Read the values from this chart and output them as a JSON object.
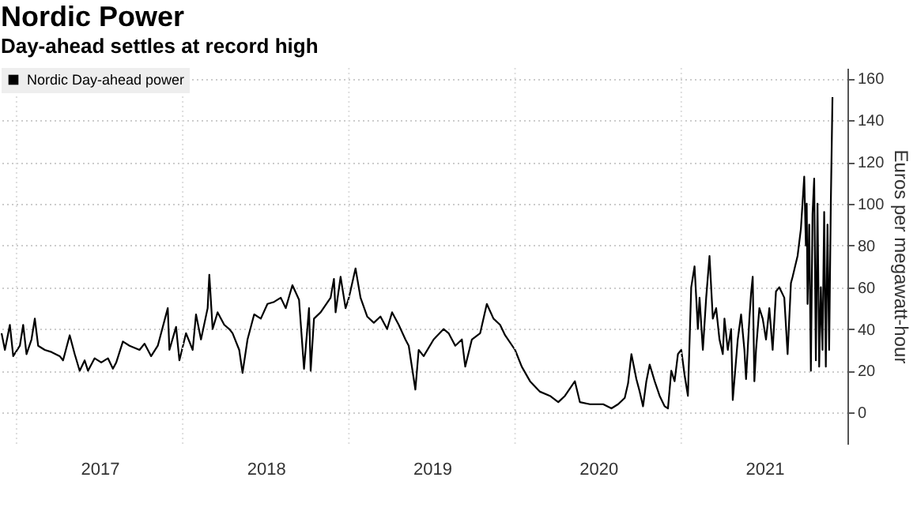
{
  "chart_data": {
    "type": "line",
    "title": "Nordic Power",
    "subtitle": "Day-ahead settles at record high",
    "ylabel": "Euros per megawatt-hour",
    "x": [
      2016.91,
      2016.93,
      2016.96,
      2016.98,
      2017.02,
      2017.04,
      2017.06,
      2017.09,
      2017.11,
      2017.13,
      2017.17,
      2017.21,
      2017.26,
      2017.28,
      2017.32,
      2017.35,
      2017.38,
      2017.41,
      2017.43,
      2017.47,
      2017.51,
      2017.55,
      2017.58,
      2017.6,
      2017.64,
      2017.68,
      2017.74,
      2017.77,
      2017.81,
      2017.85,
      2017.91,
      2017.92,
      2017.96,
      2017.98,
      2018.02,
      2018.06,
      2018.08,
      2018.11,
      2018.15,
      2018.16,
      2018.18,
      2018.21,
      2018.25,
      2018.28,
      2018.3,
      2018.34,
      2018.36,
      2018.39,
      2018.43,
      2018.47,
      2018.51,
      2018.55,
      2018.59,
      2018.62,
      2018.66,
      2018.7,
      2018.73,
      2018.76,
      2018.77,
      2018.79,
      2018.83,
      2018.89,
      2018.91,
      2018.92,
      2018.95,
      2018.98,
      2019.0,
      2019.04,
      2019.07,
      2019.11,
      2019.15,
      2019.19,
      2019.23,
      2019.26,
      2019.3,
      2019.34,
      2019.36,
      2019.4,
      2019.42,
      2019.45,
      2019.51,
      2019.57,
      2019.6,
      2019.64,
      2019.68,
      2019.7,
      2019.74,
      2019.79,
      2019.83,
      2019.87,
      2019.91,
      2019.94,
      2020.0,
      2020.04,
      2020.09,
      2020.15,
      2020.21,
      2020.26,
      2020.3,
      2020.36,
      2020.39,
      2020.45,
      2020.53,
      2020.58,
      2020.62,
      2020.66,
      2020.68,
      2020.7,
      2020.73,
      2020.75,
      2020.77,
      2020.79,
      2020.81,
      2020.84,
      2020.87,
      2020.9,
      2020.92,
      2020.94,
      2020.96,
      2020.98,
      2021.0,
      2021.02,
      2021.04,
      2021.06,
      2021.08,
      2021.1,
      2021.11,
      2021.13,
      2021.15,
      2021.17,
      2021.19,
      2021.21,
      2021.23,
      2021.25,
      2021.26,
      2021.28,
      2021.3,
      2021.31,
      2021.34,
      2021.36,
      2021.38,
      2021.39,
      2021.41,
      2021.42,
      2021.43,
      2021.44,
      2021.45,
      2021.47,
      2021.49,
      2021.51,
      2021.53,
      2021.55,
      2021.57,
      2021.59,
      2021.62,
      2021.64,
      2021.66,
      2021.67,
      2021.7,
      2021.72,
      2021.74,
      2021.75,
      2021.755,
      2021.76,
      2021.77,
      2021.78,
      2021.79,
      2021.8,
      2021.81,
      2021.82,
      2021.83,
      2021.84,
      2021.85,
      2021.86,
      2021.87,
      2021.88,
      2021.89,
      2021.9,
      2021.91
    ],
    "series": [
      {
        "name": "Nordic Day-ahead power",
        "color": "#000000",
        "values": [
          38,
          30,
          42,
          27,
          32,
          42,
          28,
          35,
          45,
          32,
          30,
          29,
          27,
          25,
          37,
          28,
          20,
          25,
          20,
          26,
          24,
          26,
          21,
          24,
          34,
          32,
          30,
          33,
          27,
          32,
          50,
          30,
          41,
          25,
          38,
          30,
          47,
          35,
          50,
          66,
          40,
          48,
          42,
          40,
          38,
          30,
          19,
          35,
          47,
          45,
          52,
          53,
          55,
          50,
          61,
          54,
          21,
          50,
          20,
          45,
          48,
          55,
          64,
          48,
          65,
          50,
          55,
          69,
          55,
          46,
          43,
          46,
          40,
          48,
          42,
          35,
          32,
          11,
          30,
          27,
          35,
          40,
          38,
          32,
          35,
          22,
          35,
          38,
          52,
          45,
          42,
          37,
          30,
          22,
          15,
          10,
          8,
          5,
          8,
          15,
          5,
          4,
          4,
          2,
          4,
          7,
          14,
          28,
          16,
          10,
          3,
          15,
          23,
          15,
          8,
          3,
          2,
          20,
          15,
          28,
          30,
          18,
          8,
          60,
          70,
          40,
          55,
          30,
          55,
          75,
          45,
          50,
          35,
          28,
          45,
          30,
          40,
          6,
          35,
          47,
          30,
          16,
          45,
          57,
          65,
          15,
          30,
          50,
          45,
          35,
          50,
          30,
          58,
          60,
          55,
          28,
          62,
          65,
          75,
          88,
          113,
          80,
          100,
          52,
          90,
          20,
          95,
          112,
          25,
          100,
          22,
          60,
          30,
          96,
          22,
          90,
          30,
          100,
          151
        ]
      }
    ],
    "xlim": [
      2016.91,
      2022.0
    ],
    "xticks": [
      {
        "value": 2017,
        "label": null
      },
      {
        "value": 2018,
        "label": null
      },
      {
        "value": 2019,
        "label": null
      },
      {
        "value": 2020,
        "label": null
      },
      {
        "value": 2021,
        "label": null
      },
      {
        "value": 2017.5,
        "label": "2017"
      },
      {
        "value": 2018.5,
        "label": "2018"
      },
      {
        "value": 2019.5,
        "label": "2019"
      },
      {
        "value": 2020.5,
        "label": "2020"
      },
      {
        "value": 2021.5,
        "label": "2021"
      }
    ],
    "ylim": [
      -15,
      165
    ],
    "yticks": [
      0,
      20,
      40,
      60,
      80,
      100,
      120,
      140,
      160
    ],
    "grid": true,
    "legend": "top left",
    "marker": "none",
    "line_style": "solid"
  }
}
